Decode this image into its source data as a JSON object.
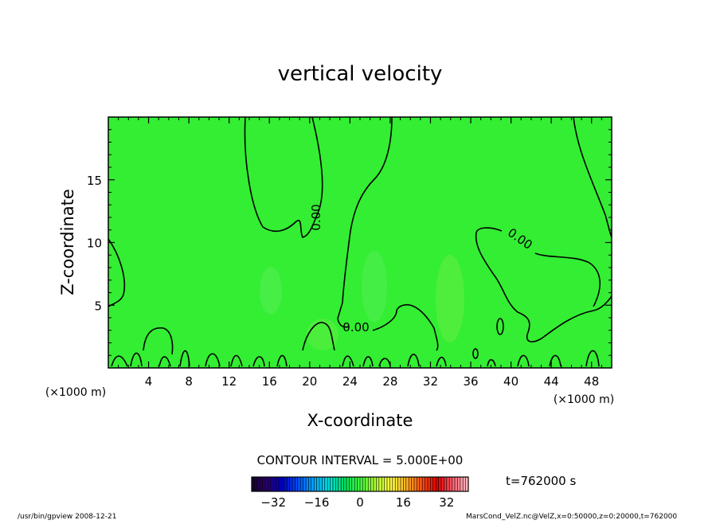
{
  "chart_data": {
    "type": "heatmap",
    "title": "vertical velocity",
    "xlabel": "X-coordinate",
    "ylabel": "Z-coordinate",
    "x_unit": "(×1000 m)",
    "y_unit": "(×1000 m)",
    "xlim": [
      0,
      50
    ],
    "ylim": [
      0,
      20
    ],
    "x_ticks": [
      4,
      8,
      12,
      16,
      20,
      24,
      28,
      32,
      36,
      40,
      44,
      48
    ],
    "y_ticks": [
      5,
      10,
      15
    ],
    "contour_interval_text": "CONTOUR INTERVAL = 5.000E+00",
    "contour_levels_labeled": [
      "0.00",
      "0.00",
      "0.00"
    ],
    "colorbar": {
      "min": -40,
      "max": 40,
      "ticks": [
        -32,
        -16,
        0,
        16,
        32
      ],
      "colors": [
        "#1a0030",
        "#2a0070",
        "#0000c0",
        "#0050ff",
        "#00a8ff",
        "#00e0e0",
        "#00e060",
        "#40ff40",
        "#b0ff30",
        "#ffff40",
        "#ffb020",
        "#ff5010",
        "#e00000",
        "#ff6070",
        "#ffc0c8"
      ]
    },
    "field_base_color": "#33ee33",
    "time_text": "t=762000 s",
    "footer_left": "/usr/bin/gpview   2008-12-21",
    "footer_right": "MarsCond_VelZ.nc@VelZ,x=0:50000,z=0:20000,t=762000"
  }
}
